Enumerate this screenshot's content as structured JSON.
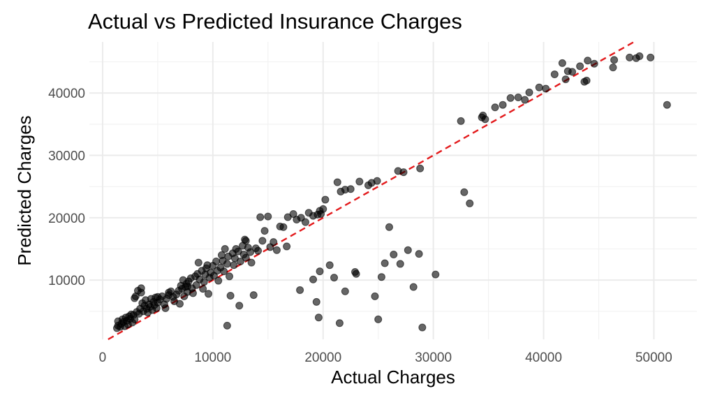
{
  "chart_data": {
    "type": "scatter",
    "title": "Actual vs Predicted Insurance Charges",
    "xlabel": "Actual Charges",
    "ylabel": "Predicted Charges",
    "xlim": [
      -1200,
      53900
    ],
    "ylim": [
      500,
      48200
    ],
    "x_ticks": [
      0,
      10000,
      20000,
      30000,
      40000,
      50000
    ],
    "y_ticks": [
      10000,
      20000,
      30000,
      40000
    ],
    "x_tick_labels": [
      "0",
      "10000",
      "20000",
      "30000",
      "40000",
      "50000"
    ],
    "y_tick_labels": [
      "10000",
      "20000",
      "30000",
      "40000"
    ],
    "grid": true,
    "reference_line": {
      "slope": 1,
      "intercept": 0,
      "style": "dashed",
      "color": "#e31a1c"
    },
    "points": [
      [
        1300,
        2300
      ],
      [
        1400,
        2700
      ],
      [
        1400,
        3400
      ],
      [
        1600,
        2500
      ],
      [
        1700,
        3000
      ],
      [
        1800,
        3700
      ],
      [
        1900,
        3300
      ],
      [
        2000,
        2600
      ],
      [
        2100,
        4000
      ],
      [
        2200,
        3500
      ],
      [
        2300,
        2900
      ],
      [
        2400,
        4200
      ],
      [
        2500,
        3800
      ],
      [
        2600,
        4500
      ],
      [
        2700,
        3200
      ],
      [
        2800,
        4400
      ],
      [
        2900,
        3700
      ],
      [
        3000,
        7400
      ],
      [
        3100,
        4900
      ],
      [
        3200,
        8300
      ],
      [
        3300,
        4600
      ],
      [
        3400,
        5400
      ],
      [
        3500,
        8700
      ],
      [
        3600,
        6300
      ],
      [
        3700,
        5000
      ],
      [
        3800,
        5900
      ],
      [
        3900,
        6800
      ],
      [
        4000,
        5400
      ],
      [
        4100,
        4800
      ],
      [
        4200,
        6100
      ],
      [
        4300,
        5700
      ],
      [
        4400,
        7000
      ],
      [
        4500,
        5200
      ],
      [
        4600,
        6500
      ],
      [
        4700,
        6000
      ],
      [
        4800,
        7200
      ],
      [
        4900,
        5500
      ],
      [
        5000,
        6400
      ],
      [
        5200,
        6900
      ],
      [
        5400,
        7400
      ],
      [
        5600,
        6100
      ],
      [
        5700,
        5500
      ],
      [
        5800,
        7000
      ],
      [
        6000,
        7600
      ],
      [
        6200,
        8200
      ],
      [
        6400,
        7300
      ],
      [
        6500,
        6600
      ],
      [
        6700,
        7700
      ],
      [
        6900,
        8300
      ],
      [
        7000,
        6200
      ],
      [
        7100,
        9100
      ],
      [
        7200,
        8600
      ],
      [
        7300,
        10000
      ],
      [
        7400,
        7400
      ],
      [
        7500,
        8900
      ],
      [
        7600,
        9400
      ],
      [
        7700,
        8100
      ],
      [
        7800,
        9800
      ],
      [
        8000,
        10300
      ],
      [
        8100,
        8700
      ],
      [
        8200,
        7900
      ],
      [
        8400,
        10600
      ],
      [
        8500,
        9200
      ],
      [
        8600,
        11000
      ],
      [
        8700,
        12800
      ],
      [
        8800,
        10100
      ],
      [
        9000,
        11500
      ],
      [
        9100,
        8600
      ],
      [
        9200,
        9700
      ],
      [
        9300,
        10900
      ],
      [
        9400,
        11900
      ],
      [
        9600,
        7800
      ],
      [
        9700,
        10400
      ],
      [
        9800,
        11200
      ],
      [
        10000,
        12300
      ],
      [
        10100,
        10700
      ],
      [
        10300,
        13000
      ],
      [
        10400,
        11500
      ],
      [
        10500,
        9900
      ],
      [
        10700,
        12000
      ],
      [
        10800,
        14000
      ],
      [
        10900,
        13100
      ],
      [
        11000,
        11400
      ],
      [
        11100,
        15000
      ],
      [
        11300,
        12600
      ],
      [
        11400,
        13800
      ],
      [
        11500,
        10600
      ],
      [
        11600,
        7500
      ],
      [
        11800,
        14300
      ],
      [
        11900,
        12400
      ],
      [
        12000,
        13500
      ],
      [
        12100,
        15000
      ],
      [
        12300,
        14600
      ],
      [
        12400,
        5900
      ],
      [
        12500,
        13000
      ],
      [
        12700,
        15500
      ],
      [
        12800,
        14100
      ],
      [
        12900,
        16500
      ],
      [
        13000,
        13600
      ],
      [
        13200,
        15200
      ],
      [
        13400,
        14500
      ],
      [
        13500,
        12800
      ],
      [
        13700,
        7600
      ],
      [
        13900,
        15100
      ],
      [
        14100,
        14700
      ],
      [
        14300,
        20100
      ],
      [
        14500,
        16300
      ],
      [
        14700,
        17900
      ],
      [
        15000,
        20200
      ],
      [
        15200,
        15300
      ],
      [
        15500,
        16100
      ],
      [
        15800,
        14800
      ],
      [
        16100,
        18600
      ],
      [
        16400,
        18500
      ],
      [
        16700,
        15400
      ],
      [
        17300,
        20600
      ],
      [
        17600,
        19700
      ],
      [
        18000,
        20000
      ],
      [
        18400,
        19300
      ],
      [
        18700,
        20800
      ],
      [
        19100,
        20300
      ],
      [
        19500,
        20500
      ],
      [
        19700,
        21100
      ],
      [
        20000,
        21400
      ],
      [
        20200,
        22900
      ],
      [
        11300,
        2700
      ],
      [
        17900,
        8400
      ],
      [
        19100,
        10100
      ],
      [
        19400,
        6500
      ],
      [
        19600,
        4000
      ],
      [
        19700,
        11400
      ],
      [
        20600,
        12400
      ],
      [
        21000,
        10400
      ],
      [
        21500,
        3100
      ],
      [
        22000,
        8200
      ],
      [
        22500,
        24600
      ],
      [
        22900,
        11300
      ],
      [
        23300,
        25800
      ],
      [
        24100,
        25200
      ],
      [
        24400,
        25600
      ],
      [
        24700,
        7400
      ],
      [
        24900,
        25900
      ],
      [
        25000,
        3700
      ],
      [
        25300,
        10500
      ],
      [
        25600,
        12700
      ],
      [
        26000,
        18500
      ],
      [
        26400,
        14100
      ],
      [
        26800,
        27500
      ],
      [
        27000,
        12600
      ],
      [
        27300,
        27300
      ],
      [
        27700,
        14800
      ],
      [
        28200,
        8900
      ],
      [
        28700,
        14200
      ],
      [
        28800,
        27900
      ],
      [
        29000,
        2400
      ],
      [
        30200,
        10900
      ],
      [
        32500,
        35500
      ],
      [
        32800,
        24100
      ],
      [
        33300,
        22300
      ],
      [
        34400,
        36100
      ],
      [
        34500,
        36400
      ],
      [
        34700,
        35800
      ],
      [
        35600,
        37700
      ],
      [
        36300,
        38100
      ],
      [
        37000,
        39200
      ],
      [
        37700,
        39300
      ],
      [
        38300,
        38900
      ],
      [
        38700,
        40100
      ],
      [
        39600,
        40900
      ],
      [
        40200,
        40700
      ],
      [
        41000,
        43000
      ],
      [
        41700,
        44800
      ],
      [
        42000,
        42200
      ],
      [
        42200,
        43500
      ],
      [
        42600,
        43400
      ],
      [
        43300,
        44300
      ],
      [
        43700,
        41800
      ],
      [
        43900,
        42000
      ],
      [
        44000,
        45200
      ],
      [
        44600,
        44700
      ],
      [
        46300,
        44100
      ],
      [
        46400,
        45300
      ],
      [
        47800,
        45700
      ],
      [
        48400,
        45600
      ],
      [
        48700,
        45900
      ],
      [
        49700,
        45700
      ],
      [
        51200,
        38100
      ],
      [
        21300,
        25700
      ],
      [
        21600,
        24200
      ],
      [
        22000,
        24500
      ],
      [
        2900,
        7100
      ],
      [
        3500,
        8000
      ],
      [
        5000,
        7300
      ],
      [
        6000,
        8000
      ],
      [
        7700,
        9000
      ],
      [
        9500,
        12400
      ],
      [
        13000,
        16300
      ],
      [
        16800,
        20100
      ],
      [
        19800,
        20600
      ],
      [
        23000,
        11000
      ]
    ]
  }
}
